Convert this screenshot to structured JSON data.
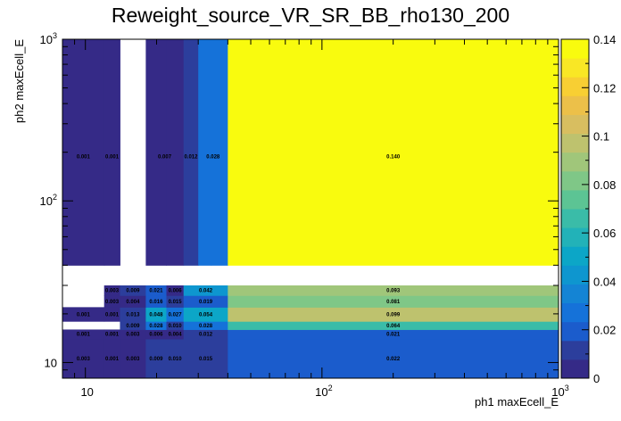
{
  "chart_data": {
    "type": "heatmap",
    "title": "Reweight_source_VR_SR_BB_rho130_200",
    "xlabel": "ph1 maxEcell_E",
    "ylabel": "ph2 maxEcell_E",
    "x_scale": "log",
    "y_scale": "log",
    "xlim": [
      8,
      1000
    ],
    "ylim": [
      8,
      1000
    ],
    "x_edges": [
      8,
      12,
      14,
      18,
      22,
      26,
      30,
      34,
      40,
      1000
    ],
    "y_edges": [
      8,
      14,
      16,
      18,
      22,
      26,
      30,
      34,
      40,
      1000
    ],
    "x_ticks": [
      {
        "value": 10,
        "label": "10"
      },
      {
        "value": 100,
        "label": "10²"
      },
      {
        "value": 1000,
        "label": "10³"
      }
    ],
    "y_ticks": [
      {
        "value": 10,
        "label": "10"
      },
      {
        "value": 100,
        "label": "10²"
      },
      {
        "value": 1000,
        "label": "10³"
      }
    ],
    "z_range": [
      0,
      0.14
    ],
    "z_ticks": [
      "0",
      "0.02",
      "0.04",
      "0.06",
      "0.08",
      "0.1",
      "0.12",
      "0.14"
    ],
    "palette": [
      "#352a87",
      "#2c3e9c",
      "#1b5ccc",
      "#1572d9",
      "#1484d4",
      "#0e96cf",
      "#0ca6c7",
      "#22b2b8",
      "#3abca8",
      "#5cc494",
      "#7fc787",
      "#a0c67a",
      "#bec26e",
      "#d8be60",
      "#ecc049",
      "#f8cf33",
      "#f9e725",
      "#f9fb0e"
    ],
    "cells": [
      {
        "row": 0,
        "values": [
          "0.003",
          "0.001",
          "0.003",
          "0.009",
          "0.010",
          "0.015",
          "",
          "",
          "0.022"
        ]
      },
      {
        "row": 1,
        "values": [
          "0.001",
          "0.001",
          "0.003",
          "0.006",
          "0.004",
          "0.012",
          "",
          "",
          "0.021"
        ]
      },
      {
        "row": 2,
        "values": [
          null,
          null,
          "0.009",
          "0.028",
          "0.010",
          "0.028",
          "",
          "",
          "0.064"
        ]
      },
      {
        "row": 3,
        "values": [
          "0.001",
          "0.001",
          "0.013",
          "0.048",
          "0.027",
          "0.054",
          "",
          "",
          "0.099"
        ]
      },
      {
        "row": 4,
        "values": [
          null,
          "0.003",
          "0.004",
          "0.016",
          "0.015",
          "0.019",
          "",
          "",
          "0.081"
        ]
      },
      {
        "row": 5,
        "values": [
          null,
          "0.003",
          "0.009",
          "0.021",
          "0.006",
          "0.042",
          "",
          "",
          "0.093"
        ]
      },
      {
        "row": 6,
        "values": [
          null,
          null,
          null,
          null,
          null,
          null,
          null,
          null,
          null
        ]
      },
      {
        "row": 7,
        "values": [
          null,
          null,
          null,
          null,
          null,
          null,
          null,
          null,
          null
        ]
      },
      {
        "row": 8,
        "values": [
          "0.001",
          "0.001",
          null,
          "0.007",
          "",
          "0.012",
          "0.028",
          "",
          "0.140"
        ]
      }
    ]
  }
}
